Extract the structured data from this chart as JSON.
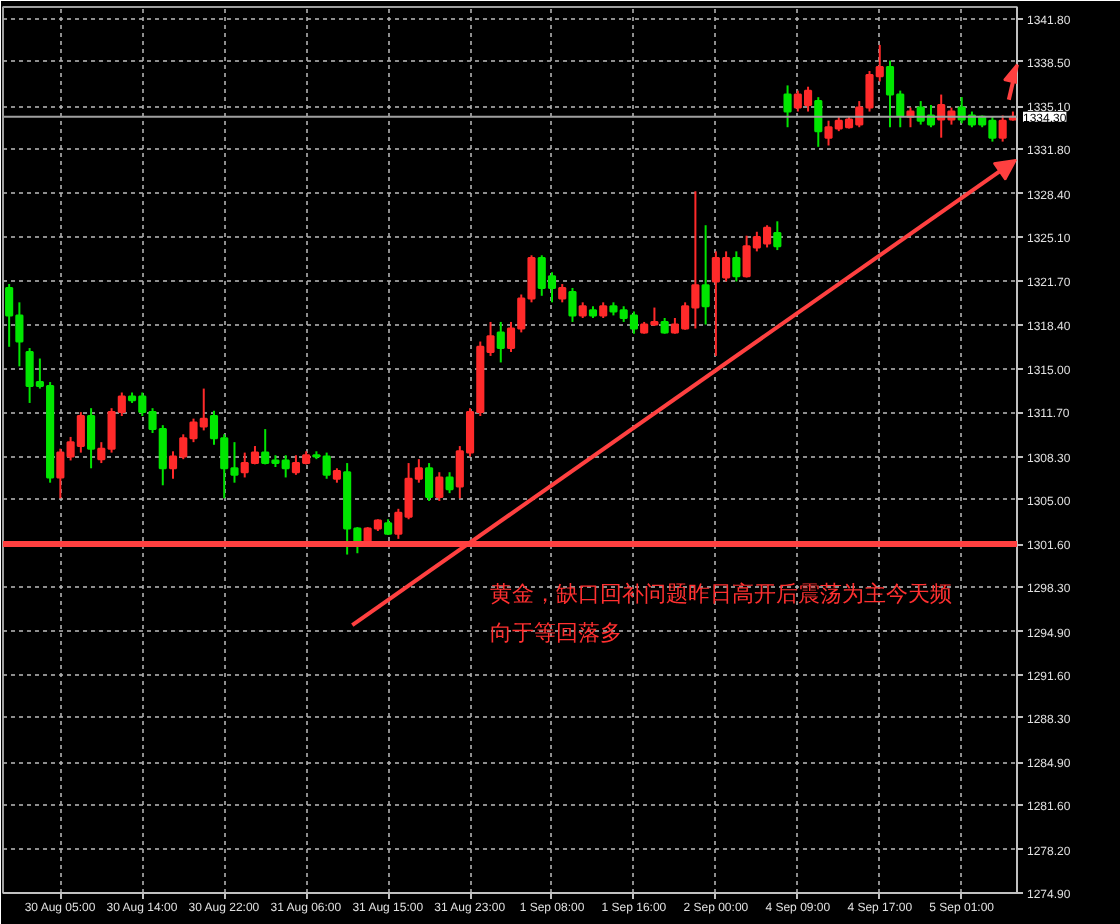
{
  "chart_data": {
    "type": "candlestick",
    "categories": [
      null,
      null,
      null,
      null,
      null,
      "30 Aug 05:00",
      null,
      null,
      null,
      null,
      null,
      null,
      null,
      "30 Aug 14:00",
      null,
      null,
      null,
      null,
      null,
      null,
      null,
      "30 Aug 22:00",
      null,
      null,
      null,
      null,
      null,
      null,
      null,
      "31 Aug 06:00",
      null,
      null,
      null,
      null,
      null,
      null,
      null,
      "31 Aug 15:00",
      null,
      null,
      null,
      null,
      null,
      null,
      null,
      "31 Aug 23:00",
      null,
      null,
      null,
      null,
      null,
      null,
      null,
      "1 Sep 08:00",
      null,
      null,
      null,
      null,
      null,
      null,
      null,
      "1 Sep 16:00",
      null,
      null,
      null,
      null,
      null,
      null,
      null,
      "2 Sep 00:00",
      null,
      null,
      null,
      null,
      null,
      null,
      null,
      "4 Sep 09:00",
      null,
      null,
      null,
      null,
      null,
      null,
      null,
      "4 Sep 17:00",
      null,
      null,
      null,
      null,
      null,
      null,
      null,
      "5 Sep 01:00",
      null,
      null,
      null,
      null,
      null
    ],
    "ohlc": [
      [
        1321.2,
        1321.5,
        1316.7,
        1319.1
      ],
      [
        1319.1,
        1320.1,
        1315.2,
        1317.1
      ],
      [
        1316.3,
        1316.6,
        1312.4,
        1313.7
      ],
      [
        1314.0,
        1315.8,
        1313.5,
        1313.7
      ],
      [
        1313.7,
        1314.0,
        1306.3,
        1306.7
      ],
      [
        1306.7,
        1308.9,
        1305.1,
        1308.6
      ],
      [
        1308.3,
        1309.8,
        1308.0,
        1309.4
      ],
      [
        1309.1,
        1311.7,
        1308.6,
        1311.4
      ],
      [
        1311.4,
        1312.0,
        1307.4,
        1308.9
      ],
      [
        1308.1,
        1309.4,
        1307.8,
        1308.9
      ],
      [
        1308.9,
        1312.0,
        1308.6,
        1311.7
      ],
      [
        1311.7,
        1313.2,
        1311.4,
        1312.9
      ],
      [
        1312.9,
        1313.2,
        1312.4,
        1312.6
      ],
      [
        1312.9,
        1313.2,
        1311.4,
        1311.7
      ],
      [
        1311.7,
        1312.0,
        1310.1,
        1310.4
      ],
      [
        1310.4,
        1310.7,
        1306.1,
        1307.4
      ],
      [
        1307.4,
        1308.7,
        1306.6,
        1308.3
      ],
      [
        1308.3,
        1310.0,
        1308.1,
        1309.7
      ],
      [
        1309.7,
        1311.2,
        1309.4,
        1310.9
      ],
      [
        1310.6,
        1313.5,
        1310.3,
        1311.2
      ],
      [
        1311.4,
        1311.8,
        1309.2,
        1309.7
      ],
      [
        1309.7,
        1310.0,
        1305.1,
        1307.4
      ],
      [
        1307.4,
        1309.4,
        1306.3,
        1306.9
      ],
      [
        1307.1,
        1308.6,
        1306.7,
        1307.8
      ],
      [
        1307.8,
        1309.1,
        1307.7,
        1308.6
      ],
      [
        1308.6,
        1310.4,
        1307.7,
        1307.8
      ],
      [
        1308.0,
        1308.4,
        1307.5,
        1307.8
      ],
      [
        1308.0,
        1308.4,
        1306.7,
        1307.4
      ],
      [
        1307.1,
        1308.4,
        1306.9,
        1307.8
      ],
      [
        1307.8,
        1308.7,
        1307.7,
        1308.4
      ],
      [
        1308.4,
        1308.7,
        1308.1,
        1308.3
      ],
      [
        1308.3,
        1308.6,
        1306.6,
        1306.9
      ],
      [
        1306.6,
        1307.4,
        1306.3,
        1307.2
      ],
      [
        1307.1,
        1307.8,
        1300.8,
        1302.8
      ],
      [
        1302.8,
        1302.9,
        1300.9,
        1301.7
      ],
      [
        1301.8,
        1302.9,
        1301.5,
        1302.8
      ],
      [
        1302.8,
        1303.5,
        1302.6,
        1303.4
      ],
      [
        1303.2,
        1303.5,
        1302.3,
        1302.4
      ],
      [
        1302.4,
        1304.3,
        1302.0,
        1304.0
      ],
      [
        1303.7,
        1307.8,
        1303.5,
        1306.6
      ],
      [
        1306.6,
        1308.1,
        1306.3,
        1307.4
      ],
      [
        1307.4,
        1307.8,
        1304.9,
        1305.2
      ],
      [
        1305.2,
        1307.1,
        1304.9,
        1306.7
      ],
      [
        1306.7,
        1307.1,
        1305.5,
        1305.8
      ],
      [
        1306.0,
        1309.1,
        1305.1,
        1308.7
      ],
      [
        1308.6,
        1312.0,
        1308.3,
        1311.7
      ],
      [
        1311.7,
        1317.1,
        1311.4,
        1316.7
      ],
      [
        1316.3,
        1318.6,
        1316.0,
        1317.5
      ],
      [
        1317.8,
        1318.6,
        1315.5,
        1316.6
      ],
      [
        1316.6,
        1318.6,
        1316.3,
        1318.1
      ],
      [
        1318.1,
        1320.7,
        1317.8,
        1320.4
      ],
      [
        1320.4,
        1323.7,
        1320.1,
        1323.5
      ],
      [
        1323.5,
        1323.7,
        1320.6,
        1321.2
      ],
      [
        1322.1,
        1322.4,
        1320.1,
        1321.2
      ],
      [
        1320.4,
        1321.5,
        1320.1,
        1321.2
      ],
      [
        1320.9,
        1321.2,
        1318.6,
        1319.1
      ],
      [
        1319.1,
        1320.1,
        1318.9,
        1319.8
      ],
      [
        1319.5,
        1319.8,
        1318.9,
        1319.1
      ],
      [
        1319.1,
        1320.1,
        1318.9,
        1319.8
      ],
      [
        1319.8,
        1320.1,
        1319.1,
        1319.4
      ],
      [
        1319.5,
        1319.8,
        1318.6,
        1318.9
      ],
      [
        1319.1,
        1319.4,
        1317.7,
        1318.1
      ],
      [
        1317.8,
        1318.6,
        1317.7,
        1318.4
      ],
      [
        1318.4,
        1319.7,
        1318.3,
        1318.6
      ],
      [
        1318.6,
        1318.9,
        1317.7,
        1317.8
      ],
      [
        1317.8,
        1318.9,
        1317.7,
        1318.4
      ],
      [
        1318.1,
        1320.1,
        1318.0,
        1319.8
      ],
      [
        1319.7,
        1328.6,
        1318.1,
        1321.4
      ],
      [
        1321.4,
        1326.0,
        1318.4,
        1319.8
      ],
      [
        1321.7,
        1324.0,
        1316.0,
        1323.5
      ],
      [
        1322.0,
        1324.0,
        1321.7,
        1323.5
      ],
      [
        1323.5,
        1324.0,
        1321.7,
        1322.1
      ],
      [
        1322.1,
        1325.2,
        1322.0,
        1324.4
      ],
      [
        1324.3,
        1325.5,
        1324.0,
        1325.1
      ],
      [
        1324.6,
        1326.0,
        1324.3,
        1325.8
      ],
      [
        1325.4,
        1326.3,
        1324.1,
        1324.4
      ],
      [
        1336.0,
        1336.7,
        1333.5,
        1334.7
      ],
      [
        1335.0,
        1336.3,
        1334.7,
        1336.0
      ],
      [
        1335.2,
        1336.6,
        1334.7,
        1336.3
      ],
      [
        1335.5,
        1335.8,
        1332.0,
        1333.2
      ],
      [
        1332.7,
        1334.0,
        1332.1,
        1333.5
      ],
      [
        1333.4,
        1334.3,
        1333.2,
        1334.0
      ],
      [
        1333.5,
        1334.3,
        1333.4,
        1334.1
      ],
      [
        1333.7,
        1335.5,
        1333.5,
        1335.0
      ],
      [
        1335.0,
        1337.8,
        1334.7,
        1337.5
      ],
      [
        1337.4,
        1339.8,
        1337.0,
        1338.1
      ],
      [
        1338.1,
        1338.6,
        1333.5,
        1336.0
      ],
      [
        1336.0,
        1336.3,
        1333.5,
        1334.4
      ],
      [
        1334.3,
        1335.0,
        1333.5,
        1334.7
      ],
      [
        1335.0,
        1335.5,
        1333.7,
        1334.0
      ],
      [
        1334.4,
        1335.2,
        1333.5,
        1333.7
      ],
      [
        1334.1,
        1336.0,
        1332.7,
        1335.2
      ],
      [
        1334.1,
        1335.0,
        1333.7,
        1334.7
      ],
      [
        1335.0,
        1335.8,
        1333.8,
        1334.1
      ],
      [
        1334.4,
        1334.7,
        1333.5,
        1333.7
      ],
      [
        1334.3,
        1334.4,
        1333.5,
        1333.7
      ],
      [
        1334.0,
        1334.3,
        1332.4,
        1332.7
      ],
      [
        1332.7,
        1334.4,
        1332.4,
        1334.0
      ],
      [
        1334.1,
        1334.7,
        1334.0,
        1334.3
      ]
    ],
    "colors": [
      "#00e600",
      "#00e600",
      "#00e600",
      "#00e600",
      "#00e600",
      "#ff2a2a",
      "#ff2a2a",
      "#ff2a2a",
      "#00e600",
      "#ff2a2a",
      "#ff2a2a",
      "#ff2a2a",
      "#00e600",
      "#00e600",
      "#00e600",
      "#00e600",
      "#ff2a2a",
      "#ff2a2a",
      "#ff2a2a",
      "#ff2a2a",
      "#00e600",
      "#00e600",
      "#00e600",
      "#ff2a2a",
      "#ff2a2a",
      "#00e600",
      "#00e600",
      "#00e600",
      "#ff2a2a",
      "#ff2a2a",
      "#00e600",
      "#00e600",
      "#ff2a2a",
      "#00e600",
      "#00e600",
      "#ff2a2a",
      "#ff2a2a",
      "#00e600",
      "#ff2a2a",
      "#ff2a2a",
      "#ff2a2a",
      "#00e600",
      "#ff2a2a",
      "#00e600",
      "#ff2a2a",
      "#ff2a2a",
      "#ff2a2a",
      "#ff2a2a",
      "#00e600",
      "#ff2a2a",
      "#ff2a2a",
      "#ff2a2a",
      "#00e600",
      "#00e600",
      "#ff2a2a",
      "#00e600",
      "#ff2a2a",
      "#00e600",
      "#ff2a2a",
      "#00e600",
      "#00e600",
      "#00e600",
      "#ff2a2a",
      "#ff2a2a",
      "#00e600",
      "#ff2a2a",
      "#ff2a2a",
      "#ff2a2a",
      "#00e600",
      "#ff2a2a",
      "#ff2a2a",
      "#00e600",
      "#ff2a2a",
      "#ff2a2a",
      "#ff2a2a",
      "#00e600",
      "#00e600",
      "#ff2a2a",
      "#ff2a2a",
      "#00e600",
      "#ff2a2a",
      "#ff2a2a",
      "#ff2a2a",
      "#ff2a2a",
      "#ff2a2a",
      "#ff2a2a",
      "#00e600",
      "#00e600",
      "#ff2a2a",
      "#00e600",
      "#00e600",
      "#ff2a2a",
      "#ff2a2a",
      "#00e600",
      "#00e600",
      "#00e600",
      "#00e600",
      "#ff2a2a",
      "#ff2a2a"
    ],
    "ylim": [
      1274.9,
      1342.7
    ],
    "yticks": [
      {
        "value": 1274.9,
        "label": "1274.90"
      },
      {
        "value": 1278.2,
        "label": "1278.20"
      },
      {
        "value": 1281.6,
        "label": "1281.60"
      },
      {
        "value": 1284.9,
        "label": "1284.90"
      },
      {
        "value": 1288.3,
        "label": "1288.30"
      },
      {
        "value": 1291.6,
        "label": "1291.60"
      },
      {
        "value": 1294.9,
        "label": "1294.90"
      },
      {
        "value": 1298.3,
        "label": "1298.30"
      },
      {
        "value": 1301.6,
        "label": "1301.60"
      },
      {
        "value": 1305.0,
        "label": "1305.00"
      },
      {
        "value": 1308.3,
        "label": "1308.30"
      },
      {
        "value": 1311.7,
        "label": "1311.70"
      },
      {
        "value": 1315.0,
        "label": "1315.00"
      },
      {
        "value": 1318.4,
        "label": "1318.40"
      },
      {
        "value": 1321.7,
        "label": "1321.70"
      },
      {
        "value": 1325.1,
        "label": "1325.10"
      },
      {
        "value": 1328.4,
        "label": "1328.40"
      },
      {
        "value": 1331.8,
        "label": "1331.80"
      },
      {
        "value": 1335.1,
        "label": "1335.10"
      },
      {
        "value": 1338.5,
        "label": "1338.50"
      },
      {
        "value": 1341.8,
        "label": "1341.80"
      }
    ],
    "grid": true,
    "ref_lines": [
      {
        "axis": "y",
        "value": 1334.3,
        "label": "1334.30",
        "color": "#a0a0a0"
      },
      {
        "axis": "y",
        "value": 1301.6,
        "color": "#ff4040"
      }
    ],
    "annotations": [
      "黄金，缺口回补问题昨日高开后震荡为主今天频向于等回落多"
    ]
  }
}
